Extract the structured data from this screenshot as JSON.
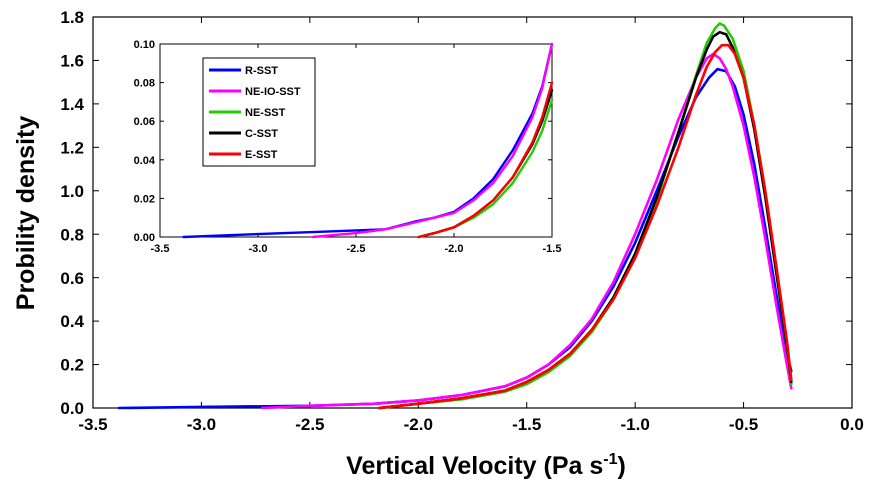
{
  "chart_data": [
    {
      "type": "line",
      "title": "",
      "xlabel": "Vertical Velocity (Pa s",
      "xlabel_superscript": "-1",
      "xlabel_close": ")",
      "ylabel": "Probility density",
      "xlim": [
        -3.5,
        0.0
      ],
      "ylim": [
        0.0,
        1.8
      ],
      "xticks": [
        "-3.5",
        "-3.0",
        "-2.5",
        "-2.0",
        "-1.5",
        "-1.0",
        "-0.5",
        "0.0"
      ],
      "yticks": [
        "0.0",
        "0.2",
        "0.4",
        "0.6",
        "0.8",
        "1.0",
        "1.2",
        "1.4",
        "1.6",
        "1.8"
      ],
      "grid": false,
      "series": [
        {
          "name": "R-SST",
          "color": "#0000ff",
          "x": [
            -3.38,
            -3.0,
            -2.5,
            -2.2,
            -2.0,
            -1.8,
            -1.6,
            -1.5,
            -1.4,
            -1.3,
            -1.2,
            -1.1,
            -1.0,
            -0.9,
            -0.8,
            -0.72,
            -0.66,
            -0.62,
            -0.58,
            -0.54,
            -0.5,
            -0.45,
            -0.4,
            -0.35,
            -0.3,
            -0.28
          ],
          "y": [
            0.0,
            0.005,
            0.01,
            0.02,
            0.035,
            0.06,
            0.1,
            0.14,
            0.2,
            0.28,
            0.4,
            0.56,
            0.76,
            1.0,
            1.25,
            1.43,
            1.52,
            1.56,
            1.55,
            1.48,
            1.35,
            1.12,
            0.83,
            0.53,
            0.25,
            0.17
          ]
        },
        {
          "name": "NE-IO-SST",
          "color": "#ff00ff",
          "x": [
            -2.72,
            -2.5,
            -2.2,
            -2.0,
            -1.8,
            -1.6,
            -1.5,
            -1.4,
            -1.3,
            -1.2,
            -1.1,
            -1.0,
            -0.9,
            -0.8,
            -0.72,
            -0.67,
            -0.64,
            -0.61,
            -0.58,
            -0.55,
            -0.5,
            -0.45,
            -0.4,
            -0.35,
            -0.3,
            -0.28
          ],
          "y": [
            0.0,
            0.01,
            0.02,
            0.035,
            0.06,
            0.1,
            0.14,
            0.2,
            0.29,
            0.41,
            0.58,
            0.8,
            1.05,
            1.33,
            1.52,
            1.61,
            1.63,
            1.61,
            1.56,
            1.48,
            1.3,
            1.06,
            0.78,
            0.48,
            0.2,
            0.09
          ]
        },
        {
          "name": "NE-SST",
          "color": "#22cc00",
          "x": [
            -2.18,
            -2.0,
            -1.8,
            -1.6,
            -1.5,
            -1.4,
            -1.3,
            -1.2,
            -1.1,
            -1.0,
            -0.9,
            -0.8,
            -0.72,
            -0.67,
            -0.63,
            -0.61,
            -0.59,
            -0.55,
            -0.5,
            -0.45,
            -0.4,
            -0.35,
            -0.3,
            -0.28
          ],
          "y": [
            0.0,
            0.02,
            0.04,
            0.075,
            0.11,
            0.165,
            0.24,
            0.35,
            0.5,
            0.7,
            0.96,
            1.27,
            1.53,
            1.68,
            1.75,
            1.77,
            1.76,
            1.7,
            1.55,
            1.3,
            0.98,
            0.63,
            0.28,
            0.11
          ]
        },
        {
          "name": "C-SST",
          "color": "#000000",
          "x": [
            -2.18,
            -2.0,
            -1.8,
            -1.6,
            -1.5,
            -1.4,
            -1.3,
            -1.2,
            -1.1,
            -1.0,
            -0.9,
            -0.8,
            -0.72,
            -0.67,
            -0.64,
            -0.61,
            -0.58,
            -0.55,
            -0.5,
            -0.45,
            -0.4,
            -0.35,
            -0.3,
            -0.28
          ],
          "y": [
            0.0,
            0.02,
            0.045,
            0.08,
            0.12,
            0.175,
            0.25,
            0.36,
            0.51,
            0.71,
            0.97,
            1.27,
            1.52,
            1.65,
            1.71,
            1.73,
            1.72,
            1.66,
            1.52,
            1.28,
            0.97,
            0.63,
            0.29,
            0.12
          ]
        },
        {
          "name": "E-SST",
          "color": "#ff0000",
          "x": [
            -2.18,
            -2.0,
            -1.8,
            -1.6,
            -1.5,
            -1.4,
            -1.3,
            -1.2,
            -1.1,
            -1.0,
            -0.9,
            -0.8,
            -0.72,
            -0.67,
            -0.63,
            -0.6,
            -0.57,
            -0.54,
            -0.5,
            -0.45,
            -0.4,
            -0.35,
            -0.3,
            -0.28
          ],
          "y": [
            0.0,
            0.02,
            0.045,
            0.08,
            0.12,
            0.175,
            0.25,
            0.36,
            0.5,
            0.69,
            0.93,
            1.2,
            1.44,
            1.57,
            1.64,
            1.67,
            1.67,
            1.63,
            1.52,
            1.3,
            1.0,
            0.66,
            0.31,
            0.13
          ]
        }
      ]
    },
    {
      "type": "line",
      "title": "",
      "xlabel": "",
      "ylabel": "",
      "xlim": [
        -3.5,
        -1.5
      ],
      "ylim": [
        0.0,
        0.1
      ],
      "xticks": [
        "-3.5",
        "-3.0",
        "-2.5",
        "-2.0",
        "-1.5"
      ],
      "yticks": [
        "0.00",
        "0.02",
        "0.04",
        "0.06",
        "0.08",
        "0.10"
      ],
      "grid": false,
      "legend_position": "top-left",
      "series": [
        {
          "name": "R-SST",
          "color": "#0000ff",
          "x": [
            -3.38,
            -3.0,
            -2.6,
            -2.35,
            -2.2,
            -2.1,
            -2.0,
            -1.9,
            -1.8,
            -1.7,
            -1.6,
            -1.55,
            -1.5
          ],
          "y": [
            0.0,
            0.0015,
            0.003,
            0.004,
            0.008,
            0.01,
            0.013,
            0.02,
            0.03,
            0.045,
            0.064,
            0.078,
            0.1
          ]
        },
        {
          "name": "NE-IO-SST",
          "color": "#ff00ff",
          "x": [
            -2.72,
            -2.5,
            -2.35,
            -2.2,
            -2.1,
            -2.0,
            -1.9,
            -1.8,
            -1.7,
            -1.6,
            -1.55,
            -1.5
          ],
          "y": [
            0.0,
            0.002,
            0.004,
            0.0075,
            0.01,
            0.0125,
            0.019,
            0.028,
            0.042,
            0.062,
            0.077,
            0.1
          ]
        },
        {
          "name": "NE-SST",
          "color": "#22cc00",
          "x": [
            -2.18,
            -2.1,
            -2.0,
            -1.9,
            -1.8,
            -1.7,
            -1.6,
            -1.55,
            -1.5
          ],
          "y": [
            0.0,
            0.002,
            0.005,
            0.01,
            0.017,
            0.028,
            0.044,
            0.055,
            0.071
          ]
        },
        {
          "name": "C-SST",
          "color": "#000000",
          "x": [
            -2.18,
            -2.1,
            -2.0,
            -1.9,
            -1.8,
            -1.7,
            -1.6,
            -1.55,
            -1.5
          ],
          "y": [
            0.0,
            0.002,
            0.005,
            0.011,
            0.019,
            0.031,
            0.048,
            0.06,
            0.076
          ]
        },
        {
          "name": "E-SST",
          "color": "#ff0000",
          "x": [
            -2.18,
            -2.1,
            -2.0,
            -1.9,
            -1.8,
            -1.7,
            -1.6,
            -1.55,
            -1.5
          ],
          "y": [
            0.0,
            0.002,
            0.005,
            0.011,
            0.019,
            0.031,
            0.049,
            0.062,
            0.08
          ]
        }
      ]
    }
  ]
}
